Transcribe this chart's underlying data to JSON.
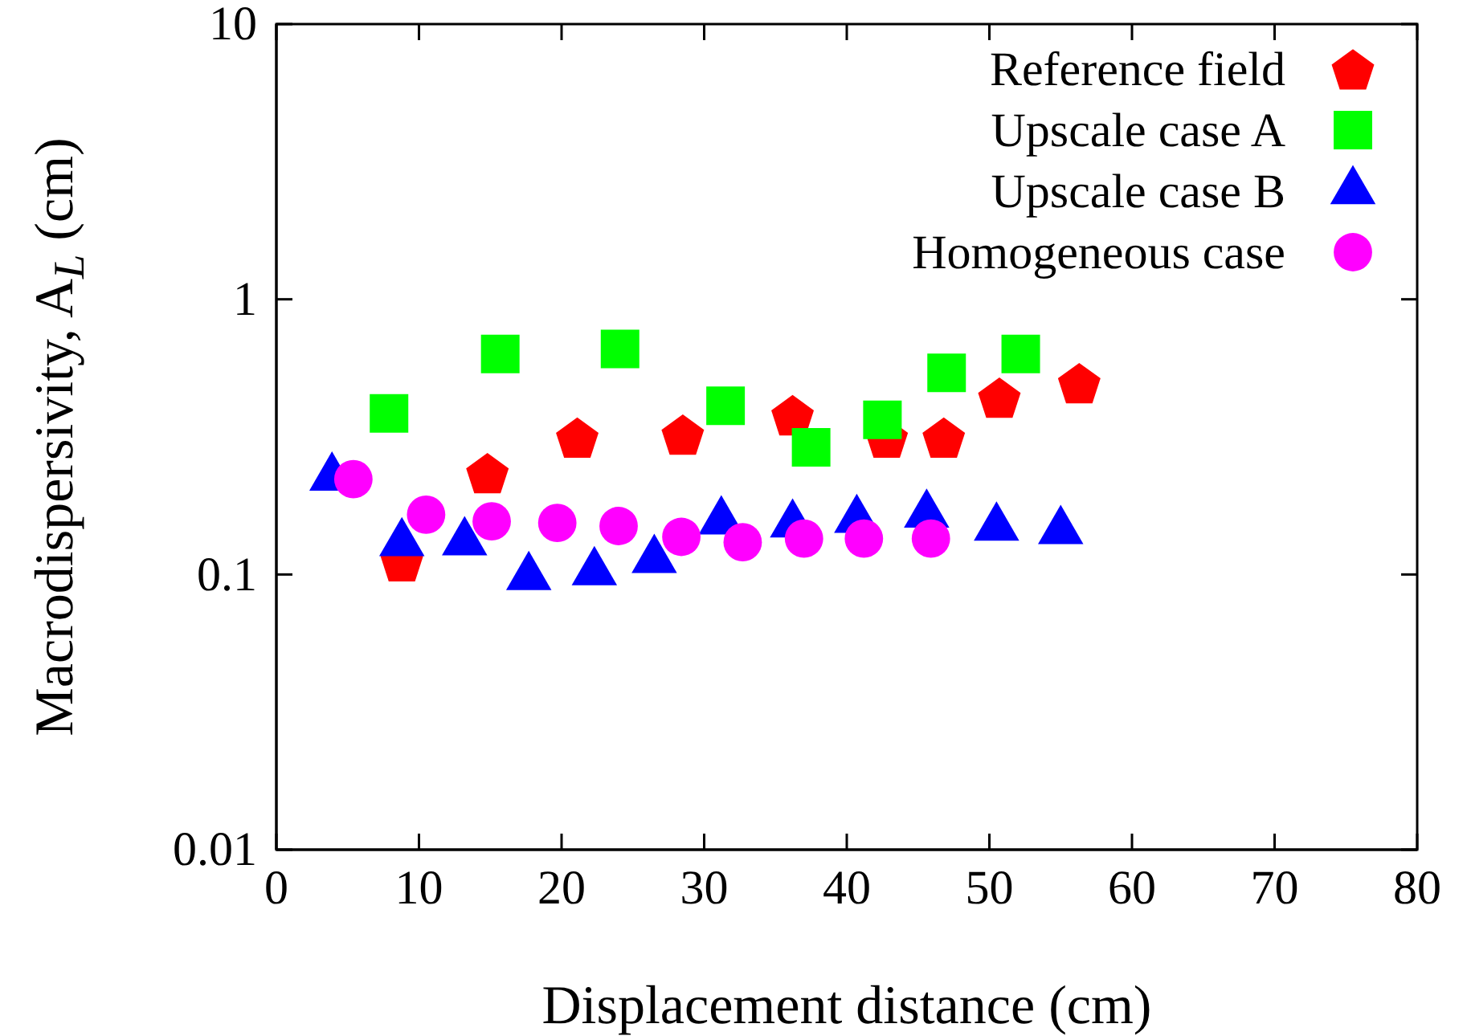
{
  "chart_data": {
    "type": "scatter",
    "xlabel": "Displacement distance (cm)",
    "ylabel": "Macrodispersivity, A$_{L}$ (cm)",
    "xlim": [
      0,
      80
    ],
    "xticks": [
      0,
      10,
      20,
      30,
      40,
      50,
      60,
      70,
      80
    ],
    "ylim": [
      0.01,
      10
    ],
    "yticks": [
      0.01,
      0.1,
      1,
      10
    ],
    "log": "y",
    "legend": "top right",
    "grid": false,
    "series": [
      {
        "name": "Reference field",
        "color": "#ff0000",
        "x": [
          8.8,
          14.8,
          21.1,
          28.5,
          36.2,
          42.8,
          46.8,
          50.7,
          56.3
        ],
        "values": [
          0.112,
          0.234,
          0.315,
          0.323,
          0.38,
          0.315,
          0.315,
          0.44,
          0.497
        ]
      },
      {
        "name": "Upscale case A",
        "color": "#00ff00",
        "marker": "square",
        "x": [
          7.9,
          15.7,
          24.1,
          31.5,
          37.5,
          42.5,
          47.0,
          52.2
        ],
        "values": [
          0.385,
          0.633,
          0.66,
          0.41,
          0.29,
          0.365,
          0.54,
          0.633
        ]
      },
      {
        "name": "Upscale case B",
        "color": "#0000ff",
        "marker": "triangle",
        "x": [
          3.9,
          8.8,
          13.2,
          17.7,
          22.3,
          26.5,
          31.2,
          36.2,
          40.7,
          45.6,
          50.5,
          55.0
        ],
        "values": [
          0.225,
          0.13,
          0.131,
          0.098,
          0.102,
          0.113,
          0.156,
          0.152,
          0.158,
          0.165,
          0.148,
          0.144
        ]
      },
      {
        "name": "Homogeneous case",
        "color": "#ff00ff",
        "marker": "circle",
        "x": [
          5.4,
          10.5,
          15.1,
          19.7,
          24.0,
          28.4,
          32.7,
          37.0,
          41.2,
          45.9
        ],
        "values": [
          0.222,
          0.165,
          0.156,
          0.154,
          0.15,
          0.137,
          0.131,
          0.135,
          0.135,
          0.135
        ]
      }
    ]
  }
}
